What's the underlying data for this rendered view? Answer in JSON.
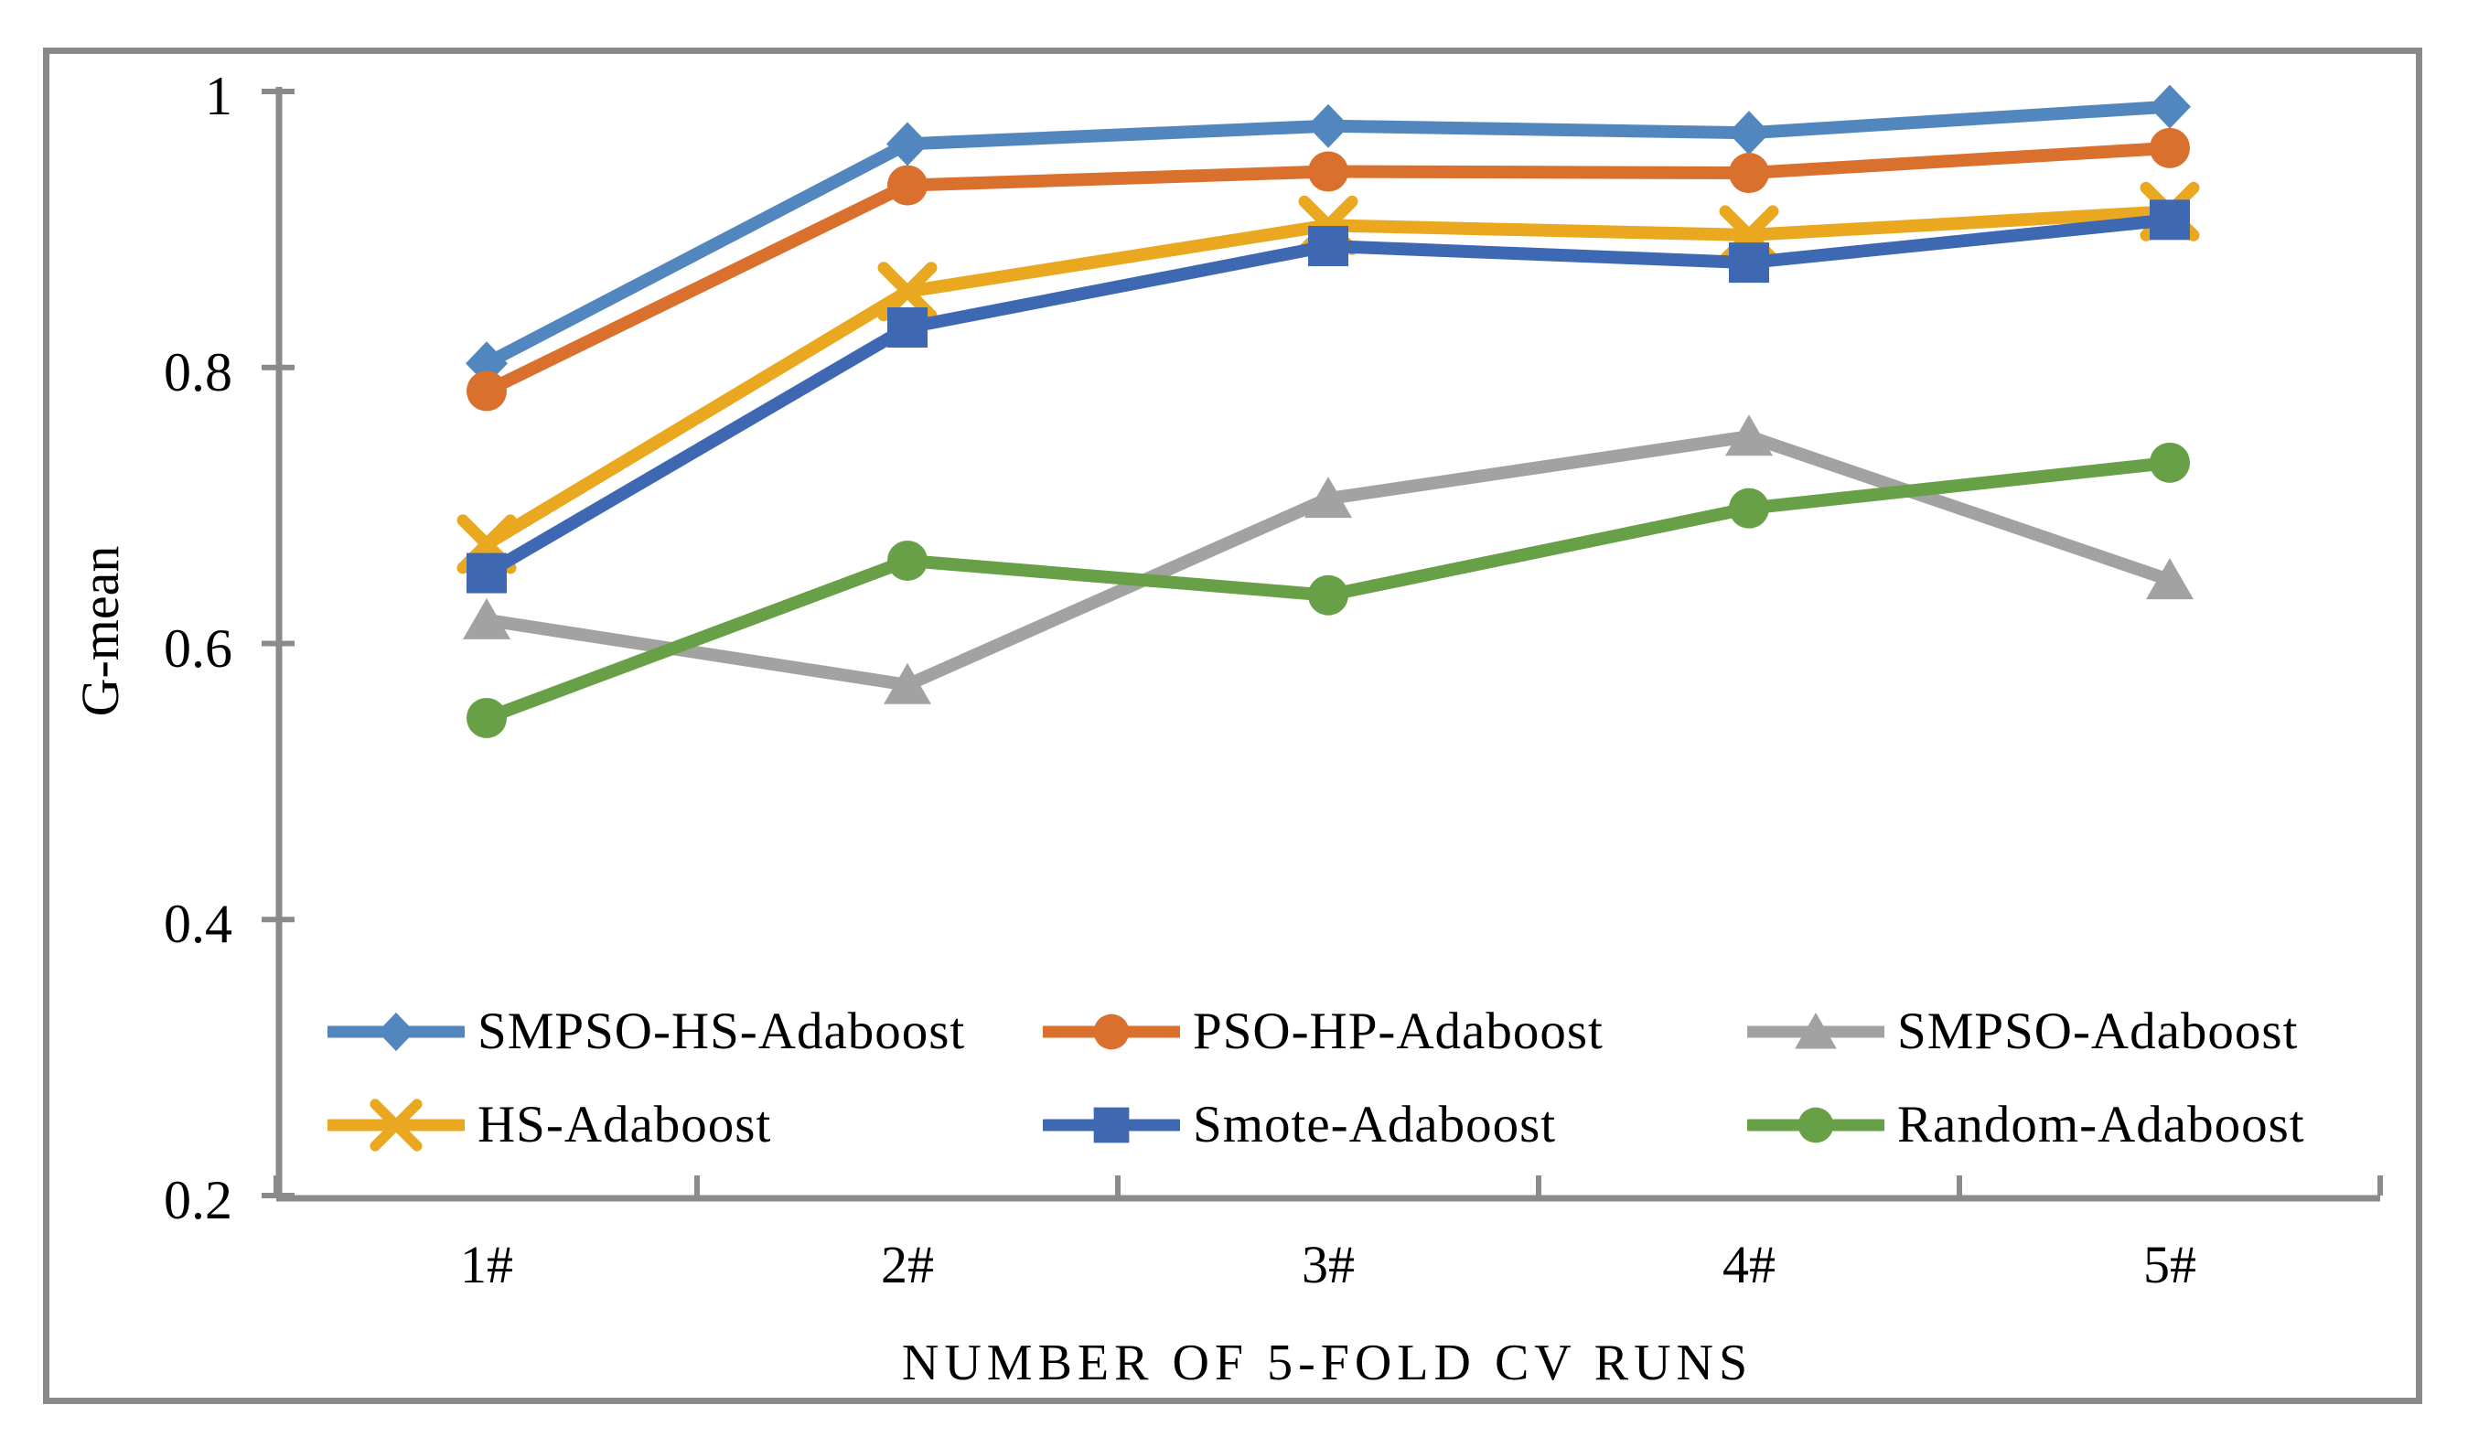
{
  "figure": {
    "background_color": "#FFFFFF",
    "border_color": "#8A8A8A",
    "axis_color": "#8A8A8A",
    "text_color": "#000000"
  },
  "chart_data": {
    "type": "line",
    "title": "",
    "xlabel": "NUMBER OF 5-FOLD CV RUNS",
    "ylabel": "G-mean",
    "categories": [
      "1#",
      "2#",
      "3#",
      "4#",
      "5#"
    ],
    "ylim": [
      0.2,
      1.0
    ],
    "y_ticks": [
      {
        "value": 1.0,
        "label": "1"
      },
      {
        "value": 0.8,
        "label": "0.8"
      },
      {
        "value": 0.6,
        "label": "0.6"
      },
      {
        "value": 0.4,
        "label": "0.4"
      },
      {
        "value": 0.2,
        "label": "0.2"
      }
    ],
    "grid": false,
    "legend_position": "inside-bottom-left, 2 rows x 3 columns",
    "series": [
      {
        "name": "SMPSO-HS-Adaboost",
        "marker": "diamond",
        "color": "#5187BE",
        "values": [
          0.803,
          0.962,
          0.975,
          0.97,
          0.989
        ]
      },
      {
        "name": "PSO-HP-Adaboost",
        "marker": "circle",
        "color": "#D9702E",
        "values": [
          0.783,
          0.932,
          0.942,
          0.941,
          0.959
        ]
      },
      {
        "name": "SMPSO-Adaboost",
        "marker": "triangle",
        "color": "#A2A2A2",
        "values": [
          0.617,
          0.57,
          0.705,
          0.75,
          0.646
        ]
      },
      {
        "name": "HS-Adaboost",
        "marker": "x",
        "color": "#E9A820",
        "values": [
          0.672,
          0.855,
          0.903,
          0.896,
          0.913
        ]
      },
      {
        "name": "Smote-Adaboost",
        "marker": "square",
        "color": "#3E68B2",
        "values": [
          0.651,
          0.829,
          0.888,
          0.876,
          0.907
        ]
      },
      {
        "name": "Random-Adaboost",
        "marker": "circle",
        "color": "#67A046",
        "values": [
          0.546,
          0.66,
          0.635,
          0.698,
          0.731
        ]
      }
    ]
  }
}
